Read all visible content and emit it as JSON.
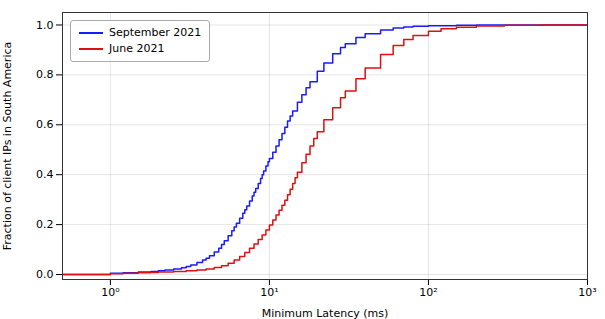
{
  "chart_data": {
    "type": "step",
    "xlabel": "Minimum Latency (ms)",
    "ylabel": "Fraction of client IPs in South America",
    "log": "x",
    "xlim": [
      0.5,
      1000
    ],
    "ylim": [
      -0.02,
      1.05
    ],
    "xticks": [
      {
        "value": 1,
        "label": "10⁰"
      },
      {
        "value": 10,
        "label": "10¹"
      },
      {
        "value": 100,
        "label": "10²"
      },
      {
        "value": 1000,
        "label": "10³"
      }
    ],
    "yticks": [
      {
        "value": 0,
        "label": "0.0"
      },
      0.2,
      0.4,
      0.6,
      0.8,
      {
        "value": 1,
        "label": "1.0"
      }
    ],
    "grid": true,
    "legend": "upper left",
    "series": [
      {
        "name": "September 2021",
        "color": "#1a1aff",
        "x": [
          0.5,
          0.6,
          0.8,
          1.0,
          1.2,
          1.5,
          1.8,
          2.0,
          2.2,
          2.5,
          2.8,
          3.0,
          3.2,
          3.5,
          3.8,
          4.0,
          4.2,
          4.5,
          4.8,
          5.0,
          5.2,
          5.5,
          5.8,
          6.0,
          6.2,
          6.5,
          6.8,
          7.0,
          7.2,
          7.5,
          7.8,
          8.0,
          8.2,
          8.5,
          8.8,
          9.0,
          9.2,
          9.5,
          9.8,
          10.0,
          10.5,
          11.0,
          11.5,
          12.0,
          12.5,
          13.0,
          13.5,
          14.0,
          15.0,
          16.0,
          17.0,
          18.0,
          20.0,
          22.0,
          25.0,
          28.0,
          30.0,
          35.0,
          40.0,
          50.0,
          60.0,
          70.0,
          80.0,
          100.0,
          150.0,
          200.0,
          500.0,
          1000.0
        ],
        "values": [
          0.0,
          0.0,
          0.0,
          0.005,
          0.007,
          0.01,
          0.012,
          0.015,
          0.018,
          0.022,
          0.027,
          0.032,
          0.038,
          0.048,
          0.058,
          0.065,
          0.075,
          0.09,
          0.105,
          0.12,
          0.135,
          0.155,
          0.175,
          0.19,
          0.205,
          0.225,
          0.245,
          0.26,
          0.275,
          0.295,
          0.315,
          0.33,
          0.345,
          0.365,
          0.385,
          0.4,
          0.415,
          0.435,
          0.452,
          0.465,
          0.49,
          0.515,
          0.54,
          0.565,
          0.59,
          0.615,
          0.635,
          0.655,
          0.69,
          0.72,
          0.748,
          0.772,
          0.815,
          0.848,
          0.885,
          0.91,
          0.925,
          0.95,
          0.965,
          0.98,
          0.988,
          0.992,
          0.995,
          0.997,
          0.999,
          0.9995,
          1.0,
          1.0
        ]
      },
      {
        "name": "June 2021",
        "color": "#dd1111",
        "x": [
          0.5,
          0.6,
          0.8,
          1.0,
          1.2,
          1.5,
          1.8,
          2.0,
          2.5,
          3.0,
          3.5,
          4.0,
          4.5,
          5.0,
          5.5,
          6.0,
          6.5,
          7.0,
          7.5,
          8.0,
          8.5,
          9.0,
          9.5,
          10.0,
          10.5,
          11.0,
          11.5,
          12.0,
          12.5,
          13.0,
          13.5,
          14.0,
          14.5,
          15.0,
          16.0,
          17.0,
          18.0,
          19.0,
          20.0,
          22.0,
          25.0,
          28.0,
          30.0,
          35.0,
          40.0,
          50.0,
          60.0,
          70.0,
          80.0,
          100.0,
          120.0,
          150.0,
          200.0,
          300.0,
          500.0,
          1000.0
        ],
        "values": [
          0.0,
          0.0,
          0.0,
          0.003,
          0.005,
          0.007,
          0.008,
          0.01,
          0.012,
          0.015,
          0.018,
          0.022,
          0.028,
          0.035,
          0.045,
          0.058,
          0.072,
          0.088,
          0.105,
          0.122,
          0.14,
          0.158,
          0.178,
          0.198,
          0.218,
          0.238,
          0.258,
          0.278,
          0.298,
          0.32,
          0.342,
          0.365,
          0.388,
          0.41,
          0.448,
          0.482,
          0.515,
          0.545,
          0.572,
          0.62,
          0.668,
          0.708,
          0.735,
          0.785,
          0.828,
          0.882,
          0.918,
          0.942,
          0.958,
          0.975,
          0.985,
          0.991,
          0.996,
          0.999,
          1.0,
          1.0
        ]
      }
    ]
  }
}
